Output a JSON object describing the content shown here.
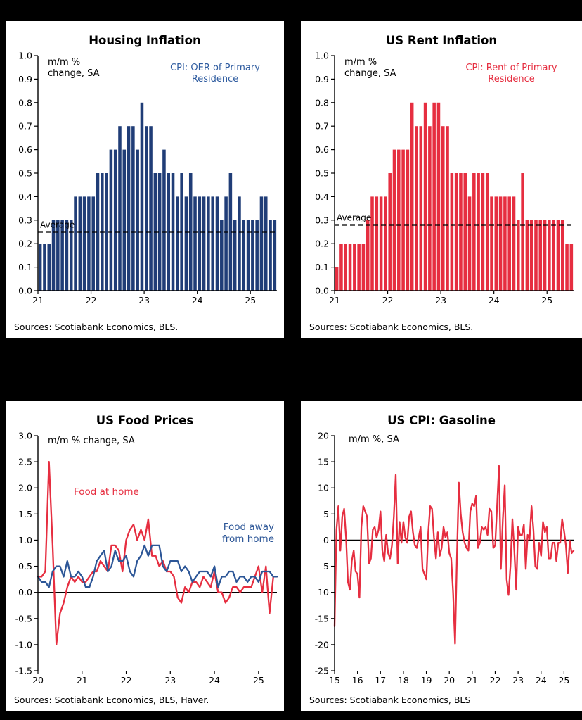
{
  "figure": {
    "background": "#000000",
    "panel_background": "#ffffff"
  },
  "chart_data": [
    {
      "type": "bar",
      "title": "Housing Inflation",
      "unit_label": "m/m %\nchange, SA",
      "annotation": "CPI: OER of Primary\nResidence",
      "annotation_color": "#2e5b9f",
      "color": "#203d77",
      "average_label": "Average",
      "average": 0.25,
      "ylim": [
        0,
        1.0
      ],
      "ytick_step": 0.1,
      "ytick_decimals": 1,
      "x_start": "2021-01",
      "frequency": "monthly",
      "x_tick_labels": [
        "21",
        "22",
        "23",
        "24",
        "25"
      ],
      "x_tick_index": [
        0,
        12,
        24,
        36,
        48
      ],
      "values": [
        0.2,
        0.2,
        0.2,
        0.3,
        0.3,
        0.3,
        0.3,
        0.3,
        0.4,
        0.4,
        0.4,
        0.4,
        0.4,
        0.5,
        0.5,
        0.5,
        0.6,
        0.6,
        0.7,
        0.6,
        0.7,
        0.7,
        0.6,
        0.8,
        0.7,
        0.7,
        0.5,
        0.5,
        0.6,
        0.5,
        0.5,
        0.4,
        0.5,
        0.4,
        0.5,
        0.4,
        0.4,
        0.4,
        0.4,
        0.4,
        0.4,
        0.3,
        0.4,
        0.5,
        0.3,
        0.4,
        0.3,
        0.3,
        0.3,
        0.3,
        0.4,
        0.4,
        0.3,
        0.3
      ],
      "source": "Sources: Scotiabank Economics, BLS."
    },
    {
      "type": "bar",
      "title": "US Rent Inflation",
      "unit_label": "m/m %\nchange, SA",
      "annotation": "CPI: Rent of Primary\nResidence",
      "annotation_color": "#e62e40",
      "color": "#e62e40",
      "average_label": "Average",
      "average": 0.28,
      "ylim": [
        0,
        1.0
      ],
      "ytick_step": 0.1,
      "ytick_decimals": 1,
      "x_start": "2021-01",
      "frequency": "monthly",
      "x_tick_labels": [
        "21",
        "22",
        "23",
        "24",
        "25"
      ],
      "x_tick_index": [
        0,
        12,
        24,
        36,
        48
      ],
      "values": [
        0.1,
        0.2,
        0.2,
        0.2,
        0.2,
        0.2,
        0.2,
        0.3,
        0.4,
        0.4,
        0.4,
        0.4,
        0.5,
        0.6,
        0.6,
        0.6,
        0.6,
        0.8,
        0.7,
        0.7,
        0.8,
        0.7,
        0.8,
        0.8,
        0.7,
        0.7,
        0.5,
        0.5,
        0.5,
        0.5,
        0.4,
        0.5,
        0.5,
        0.5,
        0.5,
        0.4,
        0.4,
        0.4,
        0.4,
        0.4,
        0.4,
        0.3,
        0.5,
        0.3,
        0.3,
        0.3,
        0.3,
        0.3,
        0.3,
        0.3,
        0.3,
        0.3,
        0.2,
        0.2
      ],
      "source": "Sources: Scotiabank Economics, BLS."
    },
    {
      "type": "line",
      "title": "US Food Prices",
      "unit_label": "m/m % change, SA",
      "labels": {
        "food_at_home": "Food at home",
        "food_away": "Food away\nfrom home"
      },
      "ylim": [
        -1.5,
        3.0
      ],
      "ytick_step": 0.5,
      "ytick_decimals": 1,
      "x_start": "2020-01",
      "frequency": "monthly",
      "x_tick_labels": [
        "20",
        "21",
        "22",
        "23",
        "24",
        "25"
      ],
      "x_tick_index": [
        0,
        12,
        24,
        36,
        48,
        60
      ],
      "series": [
        {
          "name": "Food at home",
          "color": "#e62e40",
          "values": [
            0.3,
            0.3,
            0.4,
            2.5,
            0.9,
            -1.0,
            -0.4,
            -0.2,
            0.1,
            0.3,
            0.2,
            0.3,
            0.2,
            0.2,
            0.3,
            0.4,
            0.4,
            0.6,
            0.5,
            0.4,
            0.9,
            0.9,
            0.8,
            0.4,
            1.0,
            1.2,
            1.3,
            1.0,
            1.2,
            1.0,
            1.4,
            0.7,
            0.7,
            0.5,
            0.6,
            0.4,
            0.4,
            0.3,
            -0.1,
            -0.2,
            0.1,
            0.0,
            0.2,
            0.2,
            0.1,
            0.3,
            0.2,
            0.1,
            0.4,
            0.0,
            0.0,
            -0.2,
            -0.1,
            0.1,
            0.1,
            0.0,
            0.1,
            0.1,
            0.1,
            0.3,
            0.5,
            0.0,
            0.5,
            -0.4,
            0.3,
            0.3
          ]
        },
        {
          "name": "Food away from home",
          "color": "#2c5697",
          "values": [
            0.3,
            0.2,
            0.2,
            0.1,
            0.4,
            0.5,
            0.5,
            0.3,
            0.6,
            0.3,
            0.3,
            0.4,
            0.3,
            0.1,
            0.1,
            0.3,
            0.6,
            0.7,
            0.8,
            0.4,
            0.5,
            0.8,
            0.6,
            0.6,
            0.7,
            0.4,
            0.3,
            0.6,
            0.7,
            0.9,
            0.7,
            0.9,
            0.9,
            0.9,
            0.5,
            0.4,
            0.6,
            0.6,
            0.6,
            0.4,
            0.5,
            0.4,
            0.2,
            0.3,
            0.4,
            0.4,
            0.4,
            0.3,
            0.5,
            0.1,
            0.3,
            0.3,
            0.4,
            0.4,
            0.2,
            0.3,
            0.3,
            0.2,
            0.3,
            0.3,
            0.2,
            0.4,
            0.4,
            0.4,
            0.3,
            0.3
          ]
        }
      ],
      "source": "Sources: Scotiabank Economics, BLS, Haver."
    },
    {
      "type": "line",
      "title": "US CPI: Gasoline",
      "unit_label": "m/m %, SA",
      "ylim": [
        -25,
        20
      ],
      "ytick_step": 5,
      "ytick_decimals": 0,
      "x_start": "2015-01",
      "frequency": "monthly",
      "x_tick_labels": [
        "15",
        "16",
        "17",
        "18",
        "19",
        "20",
        "21",
        "22",
        "23",
        "24",
        "25"
      ],
      "x_tick_index": [
        0,
        12,
        24,
        36,
        48,
        60,
        72,
        84,
        96,
        108,
        120
      ],
      "series": [
        {
          "name": "US CPI: Gasoline",
          "color": "#e62e40",
          "values": [
            -16.5,
            2.0,
            6.5,
            -2.0,
            4.5,
            6.0,
            0.5,
            -8.0,
            -9.5,
            -4.0,
            -2.0,
            -6.0,
            -6.5,
            -11.0,
            2.5,
            6.5,
            5.5,
            4.5,
            -4.5,
            -3.5,
            2.0,
            2.5,
            0.5,
            2.0,
            5.5,
            -2.0,
            -4.0,
            1.0,
            -2.5,
            -3.5,
            -1.0,
            4.5,
            12.5,
            -4.5,
            3.5,
            -0.5,
            3.5,
            0.5,
            -0.5,
            4.5,
            5.5,
            1.5,
            -1.0,
            -1.5,
            0.5,
            2.5,
            -5.5,
            -6.5,
            -7.5,
            1.5,
            6.5,
            6.0,
            0.5,
            -3.5,
            1.5,
            -3.0,
            -1.5,
            2.5,
            0.5,
            1.5,
            -2.5,
            -3.5,
            -10.0,
            -19.8,
            -3.0,
            11.0,
            5.0,
            1.5,
            -0.5,
            -1.5,
            -2.0,
            5.5,
            7.0,
            6.5,
            8.5,
            -1.5,
            -0.5,
            2.5,
            2.0,
            2.5,
            1.0,
            6.0,
            5.5,
            -1.5,
            -1.0,
            6.5,
            14.2,
            -5.5,
            4.0,
            10.5,
            -7.5,
            -10.5,
            -5.0,
            4.0,
            -2.0,
            -9.5,
            2.5,
            1.0,
            1.0,
            3.0,
            -5.5,
            1.0,
            0.2,
            6.5,
            2.0,
            -5.0,
            -5.5,
            -0.5,
            -3.0,
            3.5,
            1.5,
            2.5,
            -3.5,
            -3.5,
            -0.5,
            -0.5,
            -4.0,
            -0.5,
            -0.5,
            4.0,
            1.8,
            -1.0,
            -6.3,
            -0.1,
            -2.5,
            -2.0
          ]
        }
      ],
      "source": "Sources: Scotiabank Economics, BLS"
    }
  ]
}
